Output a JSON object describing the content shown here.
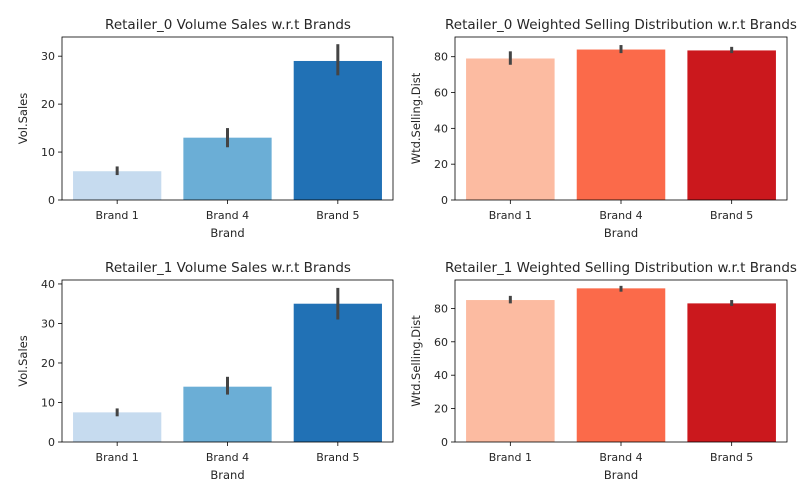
{
  "chart_data": [
    {
      "type": "bar",
      "title": "Retailer_0 Volume Sales w.r.t Brands",
      "xlabel": "Brand",
      "ylabel": "Vol.Sales",
      "categories": [
        "Brand 1",
        "Brand 4",
        "Brand 5"
      ],
      "values": [
        6.0,
        13.0,
        29.0
      ],
      "error_low": [
        5.2,
        11.0,
        26.0
      ],
      "error_high": [
        7.0,
        15.0,
        32.5
      ],
      "ylim": [
        0,
        34
      ],
      "yticks": [
        0,
        10,
        20,
        30
      ],
      "colors": [
        "#c6dbef",
        "#6baed6",
        "#2171b5"
      ]
    },
    {
      "type": "bar",
      "title": "Retailer_0 Weighted Selling Distribution w.r.t Brands",
      "xlabel": "Brand",
      "ylabel": "Wtd.Selling.Dist",
      "categories": [
        "Brand 1",
        "Brand 4",
        "Brand 5"
      ],
      "values": [
        79.0,
        84.0,
        83.5
      ],
      "error_low": [
        75.5,
        82.0,
        82.0
      ],
      "error_high": [
        83.0,
        86.5,
        85.5
      ],
      "ylim": [
        0,
        91
      ],
      "yticks": [
        0,
        20,
        40,
        60,
        80
      ],
      "colors": [
        "#fcbba1",
        "#fb6a4a",
        "#cb181d"
      ]
    },
    {
      "type": "bar",
      "title": "Retailer_1 Volume Sales w.r.t Brands",
      "xlabel": "Brand",
      "ylabel": "Vol.Sales",
      "categories": [
        "Brand 1",
        "Brand 4",
        "Brand 5"
      ],
      "values": [
        7.5,
        14.0,
        35.0
      ],
      "error_low": [
        6.5,
        12.0,
        31.0
      ],
      "error_high": [
        8.5,
        16.5,
        39.0
      ],
      "ylim": [
        0,
        41
      ],
      "yticks": [
        0,
        10,
        20,
        30,
        40
      ],
      "colors": [
        "#c6dbef",
        "#6baed6",
        "#2171b5"
      ]
    },
    {
      "type": "bar",
      "title": "Retailer_1 Weighted Selling Distribution w.r.t Brands",
      "xlabel": "Brand",
      "ylabel": "Wtd.Selling.Dist",
      "categories": [
        "Brand 1",
        "Brand 4",
        "Brand 5"
      ],
      "values": [
        85.0,
        92.0,
        83.0
      ],
      "error_low": [
        83.0,
        90.0,
        81.5
      ],
      "error_high": [
        87.5,
        93.5,
        85.0
      ],
      "ylim": [
        0,
        97
      ],
      "yticks": [
        0,
        20,
        40,
        60,
        80
      ],
      "colors": [
        "#fcbba1",
        "#fb6a4a",
        "#cb181d"
      ]
    }
  ]
}
